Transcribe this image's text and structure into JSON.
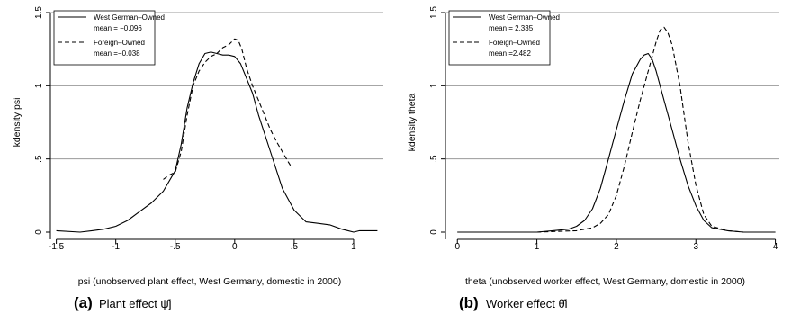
{
  "chart_data": [
    {
      "type": "line",
      "caption_label": "(a)",
      "caption_text": "Plant effect ψ̂j",
      "xlabel": "psi (unobserved plant effect, West Germany, domestic in 2000)",
      "ylabel": "kdensity psi",
      "xlim": [
        -1.55,
        1.25
      ],
      "ylim": [
        0,
        1.5
      ],
      "xticks": [
        -1.5,
        -1,
        -0.5,
        0,
        0.5,
        1
      ],
      "xtick_labels": [
        "-1.5",
        "-1",
        "-.5",
        "0",
        ".5",
        "1"
      ],
      "yticks": [
        0,
        0.5,
        1,
        1.5
      ],
      "ytick_labels": [
        "0",
        ".5",
        "1",
        "1.5"
      ],
      "grid": "horizontal",
      "legend_position": "top-left",
      "legend": [
        {
          "name": "West German–Owned",
          "mean_text": "mean = −0.096",
          "style": "solid"
        },
        {
          "name": "Foreign–Owned",
          "mean_text": "mean =−0.038",
          "style": "dashed"
        }
      ],
      "series": [
        {
          "name": "West German–Owned",
          "style": "solid",
          "x": [
            -1.5,
            -1.3,
            -1.2,
            -1.1,
            -1.0,
            -0.9,
            -0.8,
            -0.7,
            -0.6,
            -0.5,
            -0.45,
            -0.4,
            -0.35,
            -0.3,
            -0.25,
            -0.2,
            -0.15,
            -0.1,
            -0.05,
            0,
            0.05,
            0.1,
            0.15,
            0.2,
            0.3,
            0.4,
            0.5,
            0.6,
            0.7,
            0.8,
            0.9,
            1.0,
            1.05,
            1.1,
            1.2
          ],
          "y": [
            0.01,
            0.0,
            0.01,
            0.02,
            0.04,
            0.08,
            0.14,
            0.2,
            0.28,
            0.42,
            0.6,
            0.85,
            1.02,
            1.15,
            1.22,
            1.23,
            1.22,
            1.21,
            1.21,
            1.2,
            1.15,
            1.05,
            0.95,
            0.8,
            0.55,
            0.3,
            0.15,
            0.07,
            0.06,
            0.05,
            0.02,
            0.0,
            0.01,
            0.01,
            0.01
          ]
        },
        {
          "name": "Foreign–Owned",
          "style": "dashed",
          "x": [
            -0.6,
            -0.55,
            -0.5,
            -0.45,
            -0.4,
            -0.35,
            -0.3,
            -0.25,
            -0.2,
            -0.15,
            -0.1,
            -0.05,
            0,
            0.03,
            0.06,
            0.1,
            0.15,
            0.2,
            0.25,
            0.3,
            0.35,
            0.4,
            0.45,
            0.48
          ],
          "y": [
            0.36,
            0.39,
            0.41,
            0.55,
            0.8,
            1.0,
            1.1,
            1.16,
            1.2,
            1.22,
            1.26,
            1.28,
            1.32,
            1.31,
            1.25,
            1.12,
            1.0,
            0.9,
            0.8,
            0.7,
            0.62,
            0.55,
            0.48,
            0.44
          ]
        }
      ]
    },
    {
      "type": "line",
      "caption_label": "(b)",
      "caption_text": "Worker effect θ̂i",
      "xlabel": "theta (unobserved worker effect, West Germany, domestic in 2000)",
      "ylabel": "kdensity theta",
      "xlim": [
        -0.15,
        4.05
      ],
      "ylim": [
        0,
        1.5
      ],
      "xticks": [
        0,
        1,
        2,
        3,
        4
      ],
      "xtick_labels": [
        "0",
        "1",
        "2",
        "3",
        "4"
      ],
      "yticks": [
        0,
        0.5,
        1,
        1.5
      ],
      "ytick_labels": [
        "0",
        ".5",
        "1",
        "1.5"
      ],
      "grid": "horizontal",
      "legend_position": "top-left",
      "legend": [
        {
          "name": "West German–Owned",
          "mean_text": "mean = 2.335",
          "style": "solid"
        },
        {
          "name": "Foreign–Owned",
          "mean_text": "mean =2.482",
          "style": "dashed"
        }
      ],
      "series": [
        {
          "name": "West German–Owned",
          "style": "solid",
          "x": [
            0.0,
            0.5,
            1.0,
            1.2,
            1.4,
            1.5,
            1.6,
            1.7,
            1.8,
            1.9,
            2.0,
            2.1,
            2.2,
            2.3,
            2.35,
            2.4,
            2.45,
            2.5,
            2.6,
            2.7,
            2.8,
            2.9,
            3.0,
            3.1,
            3.2,
            3.4,
            3.6,
            3.8,
            4.0
          ],
          "y": [
            0.0,
            0.0,
            0.0,
            0.01,
            0.02,
            0.04,
            0.08,
            0.16,
            0.3,
            0.5,
            0.7,
            0.9,
            1.08,
            1.18,
            1.21,
            1.22,
            1.18,
            1.1,
            0.9,
            0.7,
            0.5,
            0.32,
            0.18,
            0.08,
            0.03,
            0.01,
            0.0,
            0.0,
            0.0
          ]
        },
        {
          "name": "Foreign–Owned",
          "style": "dashed",
          "x": [
            0.0,
            1.0,
            1.5,
            1.7,
            1.8,
            1.9,
            2.0,
            2.1,
            2.2,
            2.3,
            2.4,
            2.5,
            2.55,
            2.6,
            2.65,
            2.7,
            2.8,
            2.9,
            3.0,
            3.1,
            3.2,
            3.4,
            3.6,
            4.0
          ],
          "y": [
            0.0,
            0.0,
            0.01,
            0.03,
            0.06,
            0.12,
            0.25,
            0.45,
            0.68,
            0.9,
            1.1,
            1.3,
            1.38,
            1.4,
            1.36,
            1.28,
            1.0,
            0.62,
            0.32,
            0.12,
            0.04,
            0.01,
            0.0,
            0.0
          ]
        }
      ]
    }
  ]
}
